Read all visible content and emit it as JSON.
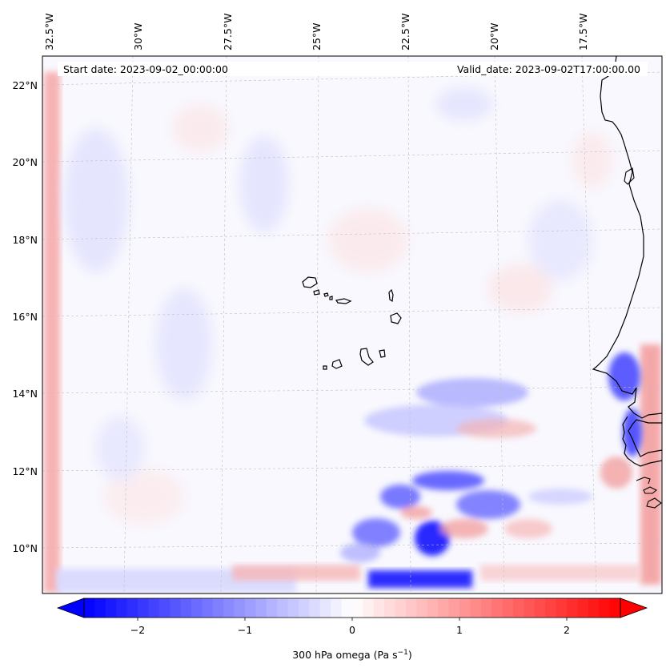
{
  "header": {
    "start_date": "Start date: 2023-09-02_00:00:00",
    "valid_date": "Valid_date: 2023-09-02T17:00:00.00"
  },
  "map": {
    "longitude_labels": [
      "32.5°W",
      "30°W",
      "27.5°W",
      "25°W",
      "22.5°W",
      "20°W",
      "17.5°W"
    ],
    "latitude_labels": [
      "22°N",
      "20°N",
      "18°N",
      "16°N",
      "14°N",
      "12°N",
      "10°N"
    ],
    "gridlines": "dashed",
    "coastline_color": "#000000"
  },
  "colorbar": {
    "ticks": [
      "−2",
      "−1",
      "0",
      "1",
      "2"
    ],
    "label_base": "300 hPa omega (Pa s",
    "label_exp": "−1",
    "label_close": ")",
    "vmin": -2.7,
    "vmax": 2.7,
    "min_color": "#0000ff",
    "mid_color": "#ffffff",
    "max_color": "#ff0000",
    "extend": "both"
  }
}
